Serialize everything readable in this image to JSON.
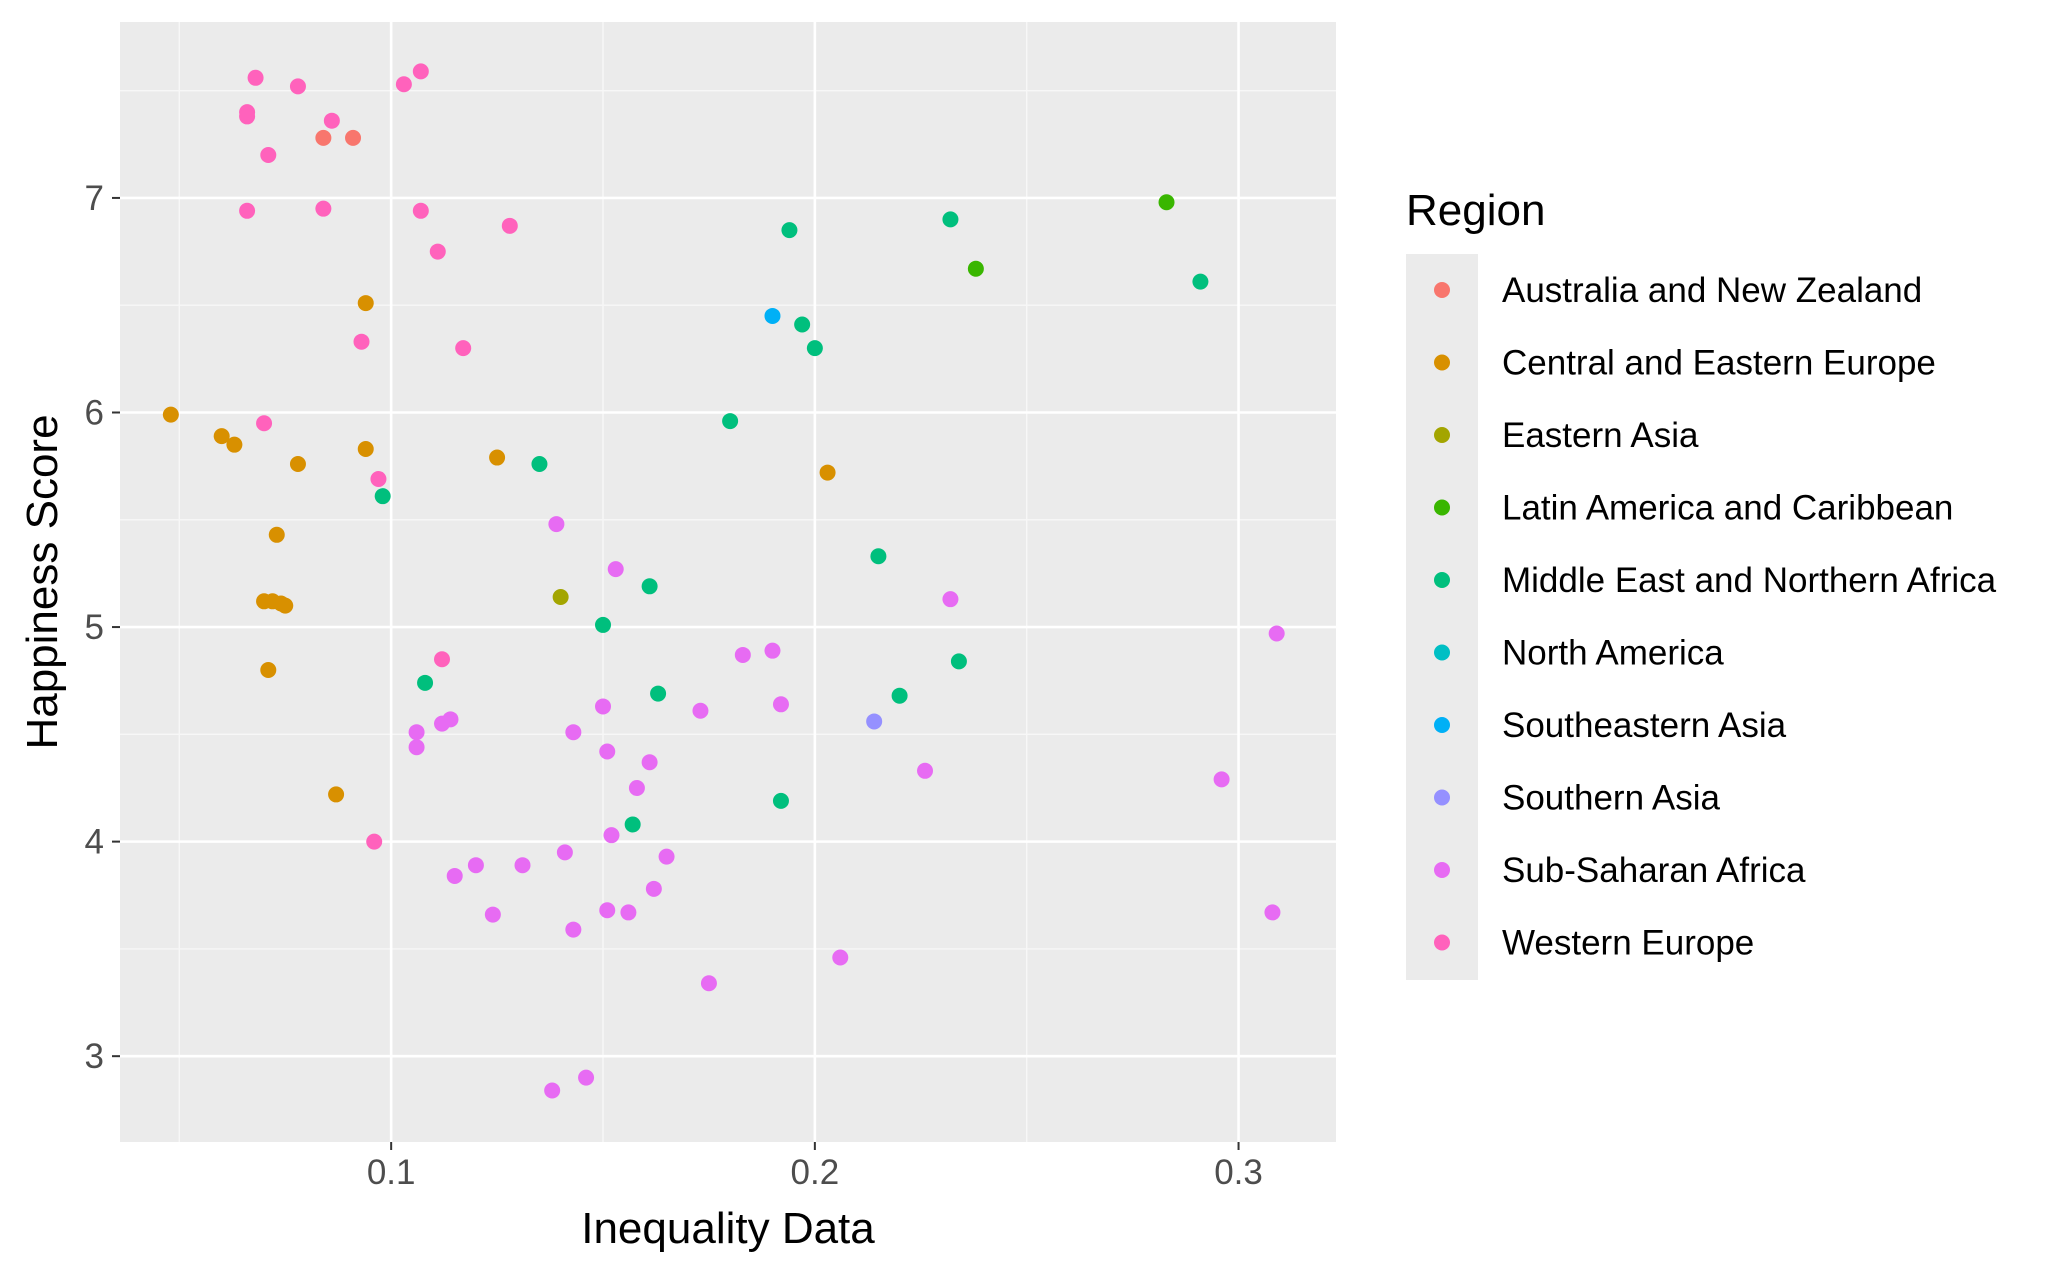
{
  "chart_data": {
    "type": "scatter",
    "title": "",
    "xlabel": "Inequality Data",
    "ylabel": "Happiness Score",
    "xlim": [
      0.036,
      0.323
    ],
    "ylim": [
      2.6,
      7.82
    ],
    "x_ticks": [
      0.1,
      0.2,
      0.3
    ],
    "x_tick_labels": [
      "0.1",
      "0.2",
      "0.3"
    ],
    "y_ticks": [
      3,
      4,
      5,
      6,
      7
    ],
    "y_tick_labels": [
      "3",
      "4",
      "5",
      "6",
      "7"
    ],
    "grid": true,
    "legend": {
      "title": "Region",
      "placement": "right"
    },
    "series": [
      {
        "name": "Australia and New Zealand",
        "color": "#F8766D",
        "points": [
          [
            0.084,
            7.28
          ],
          [
            0.091,
            7.28
          ]
        ]
      },
      {
        "name": "Central and Eastern Europe",
        "color": "#D89000",
        "points": [
          [
            0.048,
            5.99
          ],
          [
            0.06,
            5.89
          ],
          [
            0.063,
            5.85
          ],
          [
            0.078,
            5.76
          ],
          [
            0.094,
            6.51
          ],
          [
            0.094,
            5.83
          ],
          [
            0.125,
            5.79
          ],
          [
            0.073,
            5.43
          ],
          [
            0.07,
            5.12
          ],
          [
            0.072,
            5.12
          ],
          [
            0.074,
            5.11
          ],
          [
            0.075,
            5.1
          ],
          [
            0.071,
            4.8
          ],
          [
            0.087,
            4.22
          ],
          [
            0.203,
            5.72
          ]
        ]
      },
      {
        "name": "Eastern Asia",
        "color": "#A3A500",
        "points": [
          [
            0.14,
            5.14
          ]
        ]
      },
      {
        "name": "Latin America and Caribbean",
        "color": "#39B600",
        "points": [
          [
            0.283,
            6.98
          ],
          [
            0.238,
            6.67
          ]
        ]
      },
      {
        "name": "Middle East and Northern Africa",
        "color": "#00BF7D",
        "points": [
          [
            0.194,
            6.85
          ],
          [
            0.232,
            6.9
          ],
          [
            0.291,
            6.61
          ],
          [
            0.197,
            6.41
          ],
          [
            0.2,
            6.3
          ],
          [
            0.18,
            5.96
          ],
          [
            0.135,
            5.76
          ],
          [
            0.098,
            5.61
          ],
          [
            0.215,
            5.33
          ],
          [
            0.161,
            5.19
          ],
          [
            0.15,
            5.01
          ],
          [
            0.234,
            4.84
          ],
          [
            0.108,
            4.74
          ],
          [
            0.163,
            4.69
          ],
          [
            0.22,
            4.68
          ],
          [
            0.192,
            4.19
          ],
          [
            0.157,
            4.08
          ]
        ]
      },
      {
        "name": "North America",
        "color": "#00BFC4",
        "points": []
      },
      {
        "name": "Southeastern Asia",
        "color": "#00B0F6",
        "points": [
          [
            0.19,
            6.45
          ]
        ]
      },
      {
        "name": "Southern Asia",
        "color": "#9590FF",
        "points": [
          [
            0.214,
            4.56
          ]
        ]
      },
      {
        "name": "Sub-Saharan Africa",
        "color": "#E76BF3",
        "points": [
          [
            0.139,
            5.48
          ],
          [
            0.153,
            5.27
          ],
          [
            0.232,
            5.13
          ],
          [
            0.309,
            4.97
          ],
          [
            0.183,
            4.87
          ],
          [
            0.19,
            4.89
          ],
          [
            0.192,
            4.64
          ],
          [
            0.15,
            4.63
          ],
          [
            0.173,
            4.61
          ],
          [
            0.114,
            4.57
          ],
          [
            0.112,
            4.55
          ],
          [
            0.106,
            4.51
          ],
          [
            0.143,
            4.51
          ],
          [
            0.106,
            4.44
          ],
          [
            0.151,
            4.42
          ],
          [
            0.161,
            4.37
          ],
          [
            0.226,
            4.33
          ],
          [
            0.296,
            4.29
          ],
          [
            0.158,
            4.25
          ],
          [
            0.152,
            4.03
          ],
          [
            0.141,
            3.95
          ],
          [
            0.165,
            3.93
          ],
          [
            0.12,
            3.89
          ],
          [
            0.131,
            3.89
          ],
          [
            0.115,
            3.84
          ],
          [
            0.162,
            3.78
          ],
          [
            0.151,
            3.68
          ],
          [
            0.124,
            3.66
          ],
          [
            0.156,
            3.67
          ],
          [
            0.308,
            3.67
          ],
          [
            0.143,
            3.59
          ],
          [
            0.206,
            3.46
          ],
          [
            0.175,
            3.34
          ],
          [
            0.146,
            2.9
          ],
          [
            0.138,
            2.84
          ]
        ]
      },
      {
        "name": "Western Europe",
        "color": "#FF62BC",
        "points": [
          [
            0.107,
            7.59
          ],
          [
            0.068,
            7.56
          ],
          [
            0.103,
            7.53
          ],
          [
            0.078,
            7.52
          ],
          [
            0.066,
            7.4
          ],
          [
            0.066,
            7.38
          ],
          [
            0.086,
            7.36
          ],
          [
            0.071,
            7.2
          ],
          [
            0.066,
            6.94
          ],
          [
            0.084,
            6.95
          ],
          [
            0.107,
            6.94
          ],
          [
            0.128,
            6.87
          ],
          [
            0.111,
            6.75
          ],
          [
            0.093,
            6.33
          ],
          [
            0.117,
            6.3
          ],
          [
            0.07,
            5.95
          ],
          [
            0.097,
            5.69
          ],
          [
            0.112,
            4.85
          ],
          [
            0.096,
            4.0
          ]
        ]
      }
    ]
  }
}
